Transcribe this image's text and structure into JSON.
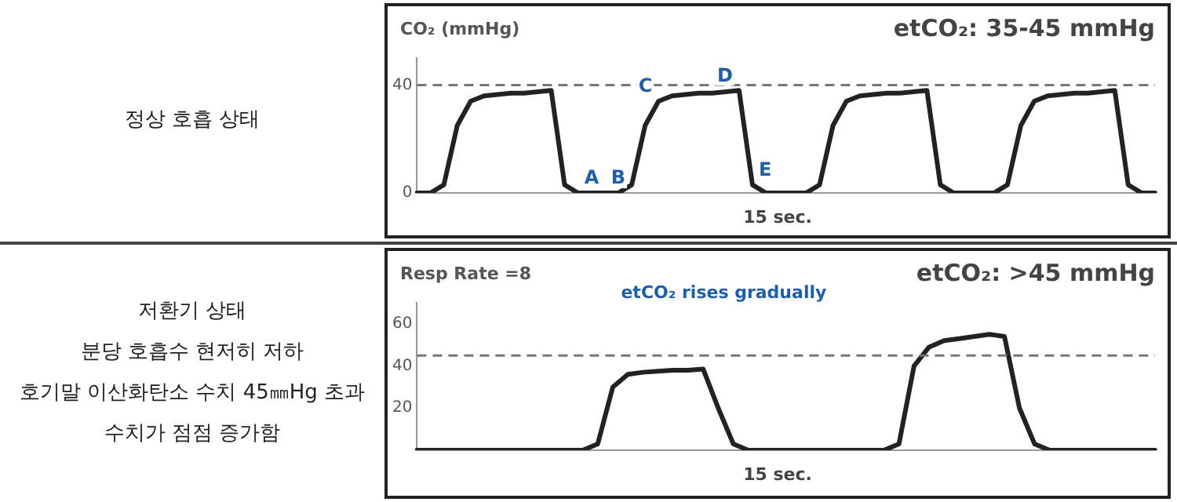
{
  "chart_data": [
    {
      "type": "line",
      "annotations": [
        "정상 호흡 상태"
      ],
      "ylabel": "CO₂ (mmHg)",
      "subtitle": "etCO₂: 35-45 mmHg",
      "xlabel": "15 sec.",
      "categories": [
        null,
        null,
        null,
        null,
        null,
        null,
        null,
        null,
        null,
        null,
        null,
        null,
        null,
        null,
        null,
        null,
        null,
        null,
        null,
        null,
        null,
        null,
        null,
        null,
        null,
        null,
        null,
        null,
        null,
        null,
        null,
        null,
        null,
        null,
        null,
        null,
        null,
        null,
        null,
        null,
        null,
        null,
        null,
        null,
        null,
        null,
        null,
        null,
        null,
        null,
        null,
        null,
        null,
        null,
        null,
        null
      ],
      "series": [
        {
          "color": "#222222",
          "values": [
            0,
            0,
            3,
            25,
            34,
            36,
            36.5,
            37,
            37,
            37.5,
            38,
            3,
            0,
            0,
            0,
            0,
            3,
            25,
            34,
            36,
            36.5,
            37,
            37,
            37.5,
            38,
            3,
            0,
            0,
            0,
            0,
            3,
            25,
            34,
            36,
            36.5,
            37,
            37,
            37.5,
            38,
            3,
            0,
            0,
            0,
            0,
            3,
            25,
            34,
            36,
            36.5,
            37,
            37,
            37.5,
            38,
            3,
            0,
            0
          ],
          "value_labels": [
            null,
            null,
            null,
            null,
            null,
            null,
            null,
            null,
            null,
            null,
            null,
            null,
            "A",
            null,
            null,
            "B",
            null,
            null,
            "C",
            null,
            null,
            null,
            null,
            null,
            "D",
            "E",
            null,
            null,
            null,
            null,
            null,
            null,
            null,
            null,
            null,
            null,
            null,
            null,
            null,
            null,
            null,
            null,
            null,
            null,
            null,
            null,
            null,
            null,
            null,
            null,
            null,
            null,
            null,
            null,
            null,
            null
          ]
        }
      ],
      "ylim": [
        0,
        50
      ],
      "yticks": [
        0,
        40
      ],
      "tick_labels": "y",
      "grid": false,
      "legend": false,
      "ref_lines": [
        {
          "axis": "y",
          "value": 40,
          "color": "#777777",
          "line_style": "dashed"
        }
      ]
    },
    {
      "type": "line",
      "title": "Resp Rate =8",
      "subtitle": "etCO₂: >45 mmHg",
      "xlabel": "15 sec.",
      "annotations": [
        "저환기 상태\n분당 호흡수 현저히 저하\n호기말 이산화탄소 수치 45㎜Hg 초과\n수치가 점점 증가함",
        "etCO₂ rises gradually"
      ],
      "categories": [
        null,
        null,
        null,
        null,
        null,
        null,
        null,
        null,
        null,
        null,
        null,
        null,
        null,
        null,
        null,
        null,
        null,
        null,
        null,
        null,
        null,
        null,
        null,
        null,
        null,
        null,
        null,
        null,
        null,
        null,
        null,
        null,
        null,
        null,
        null,
        null,
        null,
        null,
        null,
        null,
        null,
        null,
        null,
        null,
        null,
        null,
        null,
        null,
        null,
        null
      ],
      "series": [
        {
          "color": "#222222",
          "values": [
            0,
            0,
            0,
            0,
            0,
            0,
            0,
            0,
            0,
            0,
            0,
            0,
            3,
            30,
            36,
            37,
            37.5,
            38,
            38,
            38.5,
            20,
            3,
            0,
            0,
            0,
            0,
            0,
            0,
            0,
            0,
            0,
            0,
            3,
            40,
            49,
            52,
            53,
            54,
            55,
            54,
            20,
            3,
            0,
            0,
            0,
            0,
            0,
            0,
            0,
            0
          ]
        }
      ],
      "ylim": [
        0,
        70
      ],
      "yticks": [
        20,
        40,
        60
      ],
      "tick_labels": "y",
      "grid": false,
      "legend": false,
      "ref_lines": [
        {
          "axis": "y",
          "value": 45,
          "color": "#777777",
          "line_style": "dashed"
        }
      ]
    }
  ]
}
